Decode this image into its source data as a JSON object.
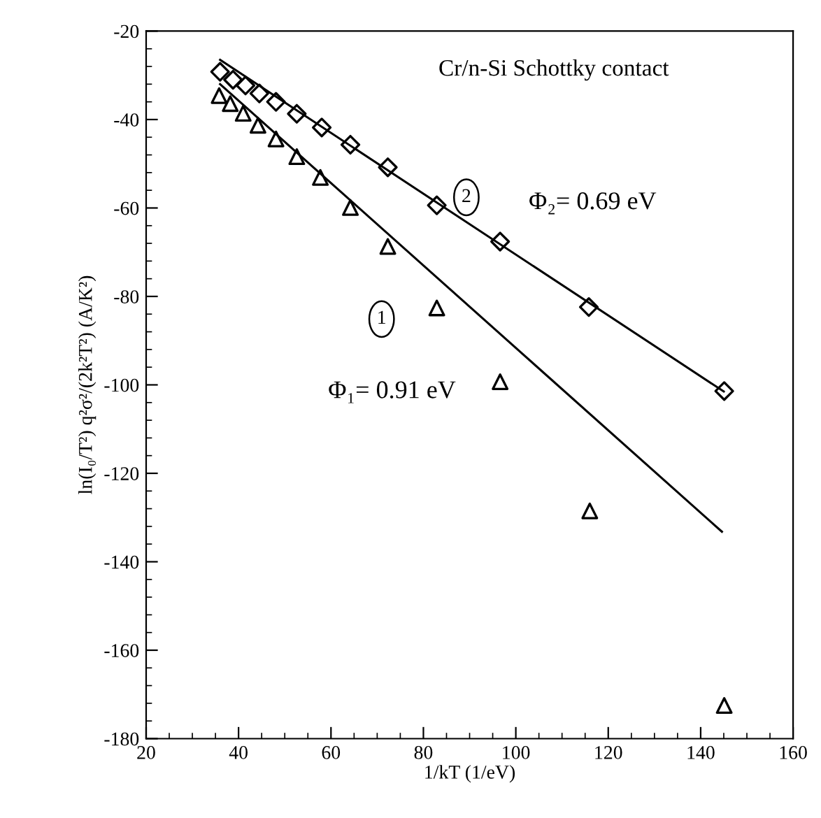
{
  "chart_data": {
    "type": "scatter",
    "xlabel": "1/kT (1/eV)",
    "ylabel": "ln(I₀/T²) q²σ²/(2k²T²) (A/K²)",
    "xlim": [
      20,
      160
    ],
    "xticks": [
      20,
      40,
      60,
      80,
      100,
      120,
      140,
      160
    ],
    "ylim": [
      -180,
      -20
    ],
    "yticks": [
      -180,
      -160,
      -140,
      -120,
      -100,
      -80,
      -60,
      -40,
      -20
    ],
    "grid": false,
    "series": [
      {
        "marker": "diamond",
        "color": "#000000",
        "x": [
          36.0,
          38.8,
          41.5,
          44.5,
          48.1,
          52.6,
          58.0,
          64.2,
          72.3,
          82.9,
          96.6,
          115.8,
          145.1
        ],
        "values": [
          -29.2,
          -31.0,
          -32.3,
          -34.1,
          -36.0,
          -38.7,
          -41.8,
          -45.7,
          -50.8,
          -59.4,
          -67.6,
          -82.4,
          -101.4
        ]
      },
      {
        "marker": "triangle",
        "color": "#000000",
        "x": [
          35.8,
          38.2,
          41.0,
          44.2,
          48.1,
          52.6,
          57.7,
          64.2,
          72.3,
          82.9,
          96.6,
          116.0,
          145.1
        ],
        "values": [
          -34.6,
          -36.4,
          -38.6,
          -41.3,
          -44.4,
          -48.4,
          -53.1,
          -59.9,
          -68.7,
          -82.6,
          -99.3,
          -128.5,
          -172.5
        ]
      },
      {
        "type": "line",
        "line_style": "solid",
        "color": "#000000",
        "x": [
          36,
          145
        ],
        "values": [
          -26.5,
          -101.5
        ]
      },
      {
        "type": "line",
        "line_style": "solid",
        "color": "#000000",
        "x": [
          36,
          144.6
        ],
        "values": [
          -32,
          -133.2
        ]
      }
    ],
    "annotations": [
      "Cr/n-Si Schottky contact",
      "2",
      "Φ₂= 0.69 eV",
      "1",
      "Φ₁= 0.91 eV"
    ]
  }
}
